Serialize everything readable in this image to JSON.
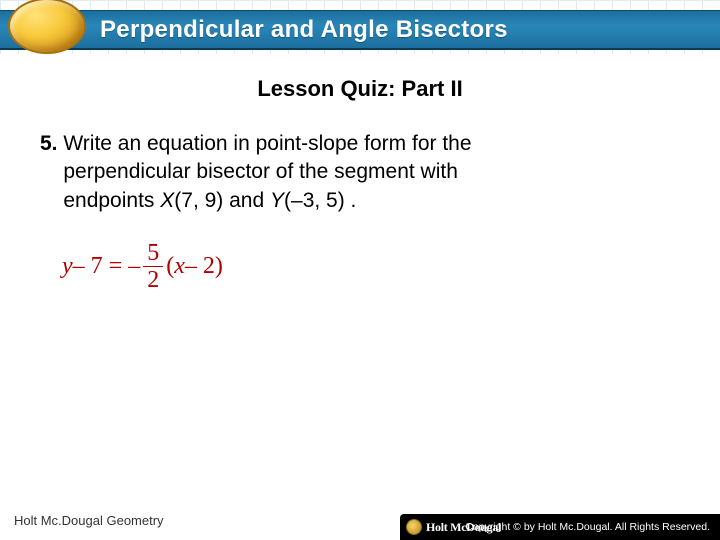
{
  "header": {
    "title": "Perpendicular and Angle Bisectors",
    "title_color": "#ffffff",
    "bar_gradient_top": "#1b6f9e",
    "bar_gradient_mid": "#2a86b8",
    "badge_gradient": [
      "#ffe27a",
      "#f8c93a",
      "#d89a1f",
      "#b8780f"
    ]
  },
  "subtitle": "Lesson Quiz: Part II",
  "question": {
    "number": "5.",
    "text_line1": "Write an equation in point-slope form for the",
    "text_line2": "perpendicular bisector of the segment with",
    "text_line3_prefix": "endpoints ",
    "pointX_label": "X",
    "pointX_coords": "(7, 9)",
    "conj": " and ",
    "pointY_label": "Y",
    "pointY_coords": "(–3, 5) ."
  },
  "equation": {
    "color": "#b00000",
    "lhs_var": "y",
    "lhs_op": " – 7 = –",
    "frac_num": "5",
    "frac_den": "2",
    "rhs_open": "(",
    "rhs_var": "x",
    "rhs_rest": " – 2)"
  },
  "footer": {
    "left": "Holt Mc.Dougal Geometry",
    "logo_text": "Holt McDougal",
    "copyright": "Copyright © by Holt Mc.Dougal. All Rights Reserved."
  }
}
